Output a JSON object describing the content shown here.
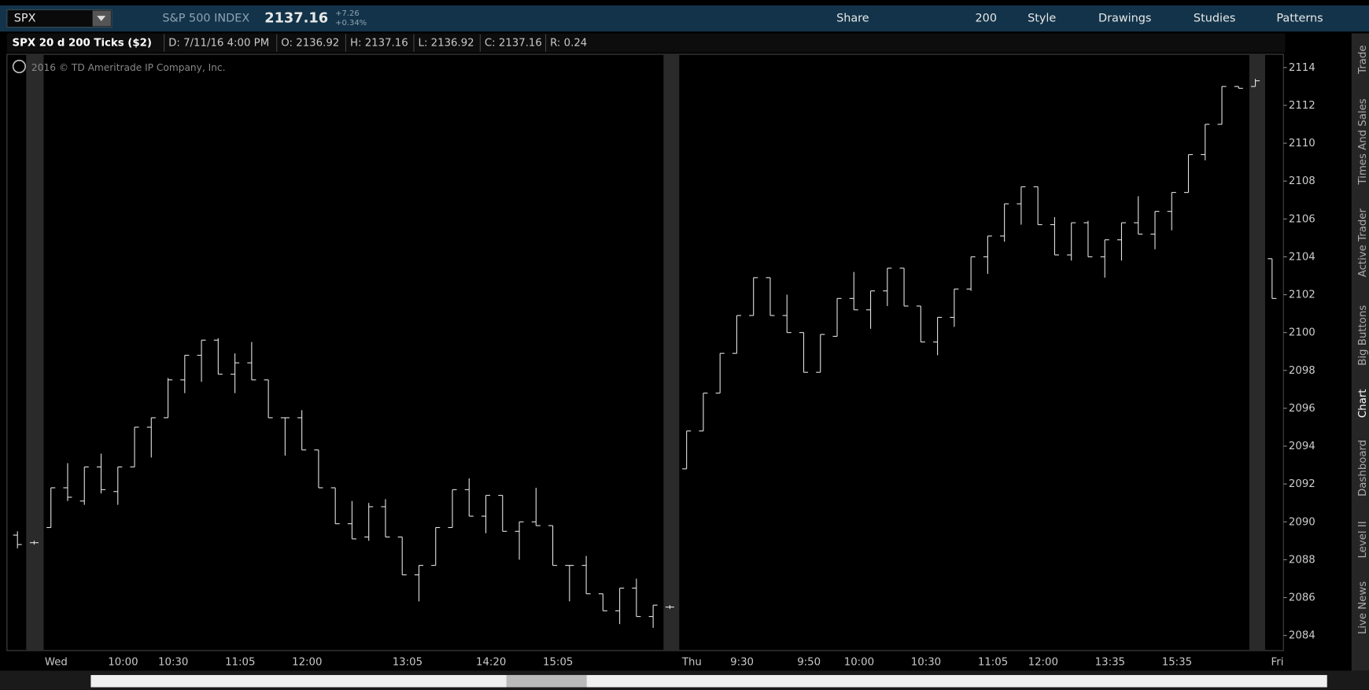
{
  "ui": {
    "symbol": "SPX",
    "description": "S&P 500 INDEX",
    "last": "2137.16",
    "change": "+7.26",
    "change_pct": "+0.34%",
    "toolbar": [
      "Share",
      "200",
      "Style",
      "Drawings",
      "Studies",
      "Patterns"
    ],
    "info": [
      "D: 7/11/16 4:00 PM",
      "O: 2136.92",
      "H: 2137.16",
      "L: 2136.92",
      "C: 2137.16",
      "R: 0.24"
    ],
    "copyright": "2016 © TD Ameritrade IP Company, Inc.",
    "side_tabs": [
      "Trade",
      "Times And Sales",
      "Active Trader",
      "Big Buttons",
      "Chart",
      "Dashboard",
      "Level II",
      "Live News"
    ]
  },
  "chart_data": {
    "type": "ohlc",
    "title": "SPX 20 d 200 Ticks ($2)",
    "color": "#e0e0e0",
    "categories": [
      null,
      null,
      "Wed",
      null,
      null,
      null,
      "10:00",
      null,
      null,
      "10:30",
      null,
      null,
      null,
      "11:05",
      null,
      null,
      null,
      "12:00",
      null,
      null,
      null,
      null,
      null,
      "13:05",
      null,
      null,
      null,
      null,
      "14:20",
      null,
      null,
      null,
      "15:05",
      null,
      null,
      null,
      null,
      null,
      null,
      null,
      "Thu",
      null,
      null,
      "9:30",
      null,
      null,
      null,
      "9:50",
      null,
      null,
      "10:00",
      null,
      null,
      null,
      "10:30",
      null,
      null,
      null,
      "11:05",
      null,
      null,
      "12:00",
      null,
      null,
      null,
      "13:35",
      null,
      null,
      null,
      "15:35",
      null,
      null,
      null,
      null,
      null,
      "Fri"
    ],
    "open": [
      2089.3,
      2088.9,
      2089.7,
      2091.8,
      2091.1,
      2092.9,
      2091.6,
      2092.9,
      2095,
      2095.5,
      2097.5,
      2098.8,
      2099.6,
      2097.8,
      2098.4,
      2097.5,
      2095.5,
      2095.5,
      2093.8,
      2091.8,
      2089.9,
      2089.2,
      2090.8,
      2089.2,
      2087.2,
      2087.7,
      2089.7,
      2091.7,
      2090.3,
      2091.4,
      2089.5,
      2090,
      2089.8,
      2087.7,
      2087.7,
      2086.2,
      2085.3,
      2086.5,
      2085,
      2085.5,
      2092.8,
      2094.8,
      2096.8,
      2098.9,
      2100.9,
      2102.9,
      2100.9,
      2100,
      2097.9,
      2099.8,
      2101.8,
      2101.2,
      2102.2,
      2103.4,
      2101.4,
      2099.5,
      2100.8,
      2102.3,
      2104,
      2105.1,
      2106.8,
      2107.7,
      2105.7,
      2104.1,
      2105.8,
      2104,
      2104.9,
      2105.8,
      2105.2,
      2106.4,
      2107.4,
      2109.4,
      2111,
      2113,
      2113,
      2103.9
    ],
    "high": [
      2089.5,
      2089,
      2091.8,
      2093.1,
      2092.9,
      2093.6,
      2092.9,
      2095,
      2095.5,
      2097.6,
      2098.8,
      2099.6,
      2099.7,
      2098.9,
      2099.5,
      2097.5,
      2095.5,
      2095.9,
      2093.8,
      2091.8,
      2091.1,
      2091,
      2091.2,
      2089.2,
      2087.7,
      2089.7,
      2091.7,
      2092.3,
      2091.4,
      2091.4,
      2090,
      2091.8,
      2089.8,
      2087.7,
      2088.2,
      2086.2,
      2086.5,
      2087,
      2085.6,
      2085.6,
      2094.8,
      2096.8,
      2098.9,
      2100.9,
      2102.9,
      2102.9,
      2102,
      2100,
      2099.9,
      2101.8,
      2103.2,
      2102.2,
      2103.4,
      2103.4,
      2101.4,
      2100.8,
      2102.3,
      2104,
      2105.1,
      2106.8,
      2107.7,
      2107.7,
      2106.1,
      2105.8,
      2105.9,
      2104.9,
      2105.8,
      2107.2,
      2106.4,
      2107.4,
      2109.4,
      2111,
      2113,
      2113,
      2113.4,
      2103.9
    ],
    "low": [
      2088.6,
      2088.8,
      2089.7,
      2091.1,
      2090.9,
      2091.5,
      2090.9,
      2092.9,
      2093.4,
      2095.5,
      2096.8,
      2097.4,
      2097.8,
      2096.8,
      2097.5,
      2095.5,
      2093.5,
      2093.8,
      2091.8,
      2089.9,
      2089.1,
      2089,
      2089.2,
      2087.2,
      2085.8,
      2087.7,
      2089.7,
      2090.3,
      2089.4,
      2089.5,
      2088,
      2089.8,
      2087.7,
      2085.8,
      2086.2,
      2085.3,
      2084.6,
      2085,
      2084.4,
      2085.4,
      2092.8,
      2094.8,
      2096.8,
      2098.9,
      2100.9,
      2100.9,
      2100,
      2097.9,
      2097.9,
      2099.8,
      2101.2,
      2100.2,
      2101.4,
      2101.4,
      2099.5,
      2098.8,
      2100.3,
      2102.2,
      2103.1,
      2104.8,
      2105.7,
      2105.7,
      2104.1,
      2103.8,
      2104,
      2102.9,
      2103.8,
      2105.2,
      2104.4,
      2105.4,
      2107.4,
      2109.1,
      2111,
      2112.9,
      2113,
      2101.8
    ],
    "close": [
      2088.8,
      2088.9,
      2091.8,
      2091.3,
      2092.9,
      2091.7,
      2092.9,
      2095,
      2095.5,
      2097.5,
      2098.8,
      2099.6,
      2097.8,
      2098.4,
      2097.5,
      2095.5,
      2095.5,
      2093.8,
      2091.8,
      2089.9,
      2089.1,
      2090.8,
      2089.2,
      2087.2,
      2087.7,
      2089.7,
      2091.7,
      2090.3,
      2091.4,
      2089.5,
      2090,
      2089.8,
      2087.7,
      2087.7,
      2086.2,
      2085.3,
      2086.5,
      2085,
      2085.6,
      2085.5,
      2094.8,
      2096.8,
      2098.9,
      2100.9,
      2102.9,
      2100.9,
      2100,
      2097.9,
      2099.9,
      2101.8,
      2101.2,
      2102.2,
      2103.4,
      2101.4,
      2099.5,
      2100.8,
      2102.3,
      2104,
      2105.1,
      2106.8,
      2107.7,
      2105.7,
      2104.1,
      2105.8,
      2104,
      2104.9,
      2105.8,
      2105.2,
      2106.4,
      2107.4,
      2109.4,
      2111,
      2113,
      2112.9,
      2113.3,
      2101.8
    ],
    "ylim": [
      2083.2,
      2114.7
    ],
    "yticks": [
      2084,
      2086,
      2088,
      2090,
      2092,
      2094,
      2096,
      2098,
      2100,
      2102,
      2104,
      2106,
      2108,
      2110,
      2112,
      2114
    ]
  }
}
